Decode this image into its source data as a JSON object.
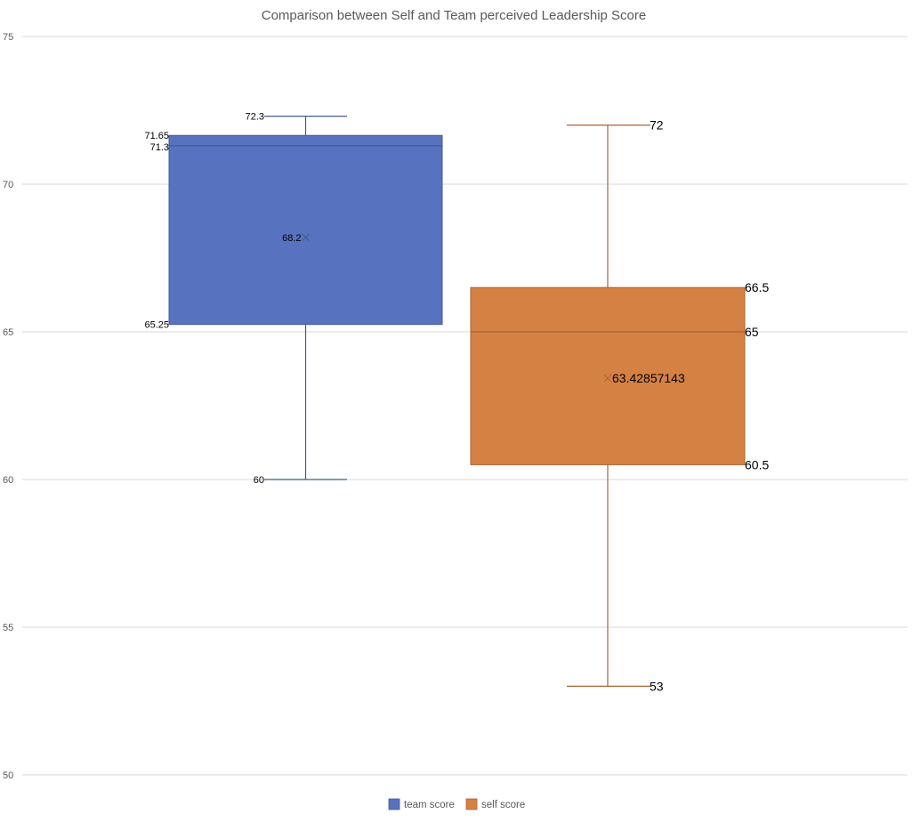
{
  "chart_data": {
    "type": "box",
    "title": "Comparison between Self and Team perceived Leadership Score",
    "xlabel": "",
    "ylabel": "",
    "ylim": [
      50,
      75
    ],
    "yticks": [
      50,
      55,
      60,
      65,
      70,
      75
    ],
    "grid": true,
    "legend_position": "bottom",
    "series": [
      {
        "name": "team score",
        "color": "#5773C0",
        "min": 60,
        "q1": 65.25,
        "median": 71.3,
        "q3": 71.65,
        "max": 72.3,
        "mean": 68.2,
        "labels": {
          "min": "60",
          "q1": "65.25",
          "median": "71.3",
          "q3": "71.65",
          "max": "72.3",
          "mean": "68.2"
        }
      },
      {
        "name": "self score",
        "color": "#D68144",
        "min": 53,
        "q1": 60.5,
        "median": 65,
        "q3": 66.5,
        "max": 72,
        "mean": 63.42857143,
        "labels": {
          "min": "53",
          "q1": "60.5",
          "median": "65",
          "q3": "66.5",
          "max": "72",
          "mean": "63.42857143"
        }
      }
    ]
  }
}
